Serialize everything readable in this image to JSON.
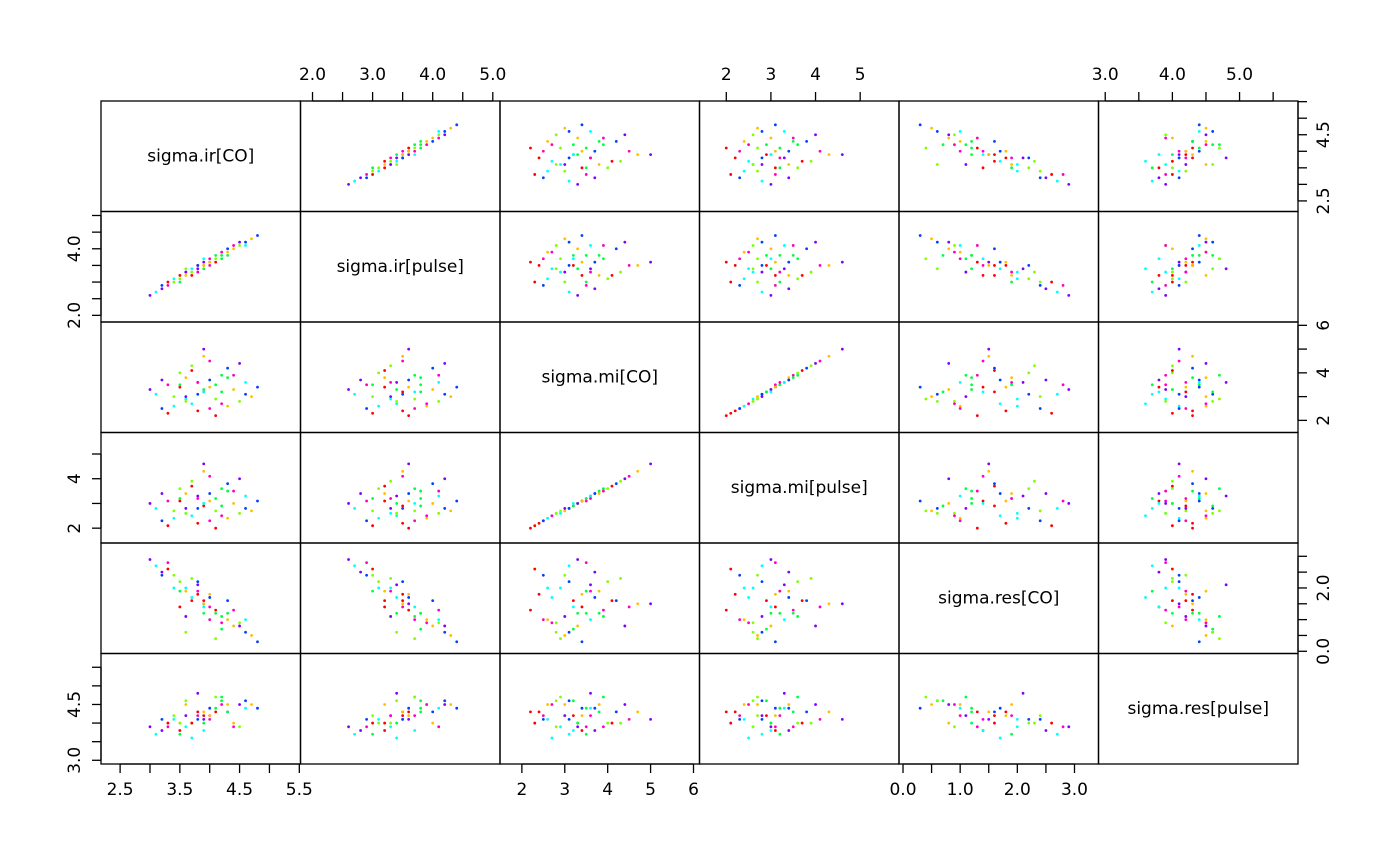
{
  "chart_data": {
    "type": "pairs",
    "variables": [
      {
        "name": "sigma.ir[CO]",
        "lim": [
          2.18,
          5.52
        ],
        "xticks": [
          2.5,
          3.5,
          4.5,
          5.5
        ],
        "xminor": [
          3,
          4,
          5
        ],
        "yticks": [
          2.5,
          4.5
        ],
        "yminor": [
          3,
          3.5,
          4,
          5,
          5.5
        ],
        "samples": [
          3.9,
          4.3,
          3.5,
          4.1,
          3.6,
          4.6,
          3.2,
          4.0,
          3.8,
          4.4,
          3.4,
          4.2,
          3.7,
          4.8,
          3.9,
          3.3,
          4.1,
          3.6,
          4.5,
          3.9,
          3.1,
          4.3,
          3.8,
          4.0,
          3.5,
          4.7,
          3.7,
          4.2,
          3.4,
          4.0,
          3.6,
          4.4,
          3.3,
          3.9,
          4.1,
          3.5,
          4.6,
          3.8,
          3.0,
          4.2,
          3.7,
          4.0,
          3.6,
          4.3,
          3.9,
          3.2,
          4.5,
          3.8
        ]
      },
      {
        "name": "sigma.ir[pulse]",
        "lim": [
          1.8,
          5.12
        ],
        "xticks": [
          {
            "value": 2,
            "label": "2.0"
          },
          {
            "value": 3,
            "label": "3.0"
          },
          {
            "value": 4,
            "label": "4.0"
          },
          {
            "value": 5,
            "label": "5.0"
          }
        ],
        "xminor": [
          2.5,
          3.5,
          4.5
        ],
        "yticks": [
          {
            "value": 2,
            "label": "2.0"
          },
          {
            "value": 4,
            "label": "4.0"
          }
        ],
        "yminor": [
          2.5,
          3,
          3.5,
          4.5,
          5
        ],
        "samples": [
          3.5,
          3.9,
          3.1,
          3.8,
          3.3,
          4.2,
          2.8,
          3.5,
          3.5,
          4.0,
          3.0,
          3.7,
          3.4,
          4.4,
          3.6,
          2.9,
          3.6,
          3.2,
          4.1,
          3.4,
          2.7,
          4.0,
          3.4,
          3.7,
          3.2,
          4.3,
          3.3,
          3.8,
          3.1,
          3.6,
          3.3,
          4.1,
          3.0,
          3.5,
          3.7,
          3.0,
          4.1,
          3.5,
          2.6,
          3.9,
          3.2,
          3.6,
          3.4,
          3.8,
          3.7,
          2.9,
          4.2,
          3.3
        ]
      },
      {
        "name": "sigma.mi[CO]",
        "lim": [
          1.49,
          6.14
        ],
        "xticks": [
          2,
          3,
          4,
          5,
          6
        ],
        "xminor": [],
        "yticks": [
          2,
          4,
          6
        ],
        "yminor": [
          3,
          5
        ],
        "samples": [
          3.2,
          2.6,
          4.0,
          3.5,
          2.9,
          3.1,
          3.7,
          4.5,
          2.4,
          3.3,
          3.0,
          3.9,
          2.7,
          3.4,
          5.0,
          3.5,
          2.2,
          3.8,
          2.8,
          3.3,
          3.1,
          4.2,
          3.6,
          2.5,
          3.4,
          3.0,
          4.3,
          3.2,
          2.6,
          3.7,
          3.0,
          3.9,
          2.3,
          4.7,
          2.9,
          3.5,
          3.6,
          3.1,
          3.3,
          2.7,
          4.1,
          3.4,
          2.8,
          3.8,
          3.2,
          2.5,
          4.4,
          3.6
        ]
      },
      {
        "name": "sigma.mi[pulse]",
        "lim": [
          1.4,
          5.87
        ],
        "xticks": [
          2,
          3,
          4,
          5
        ],
        "xminor": [],
        "yticks": [
          2,
          4
        ],
        "yminor": [
          3,
          5
        ],
        "samples": [
          2.9,
          2.4,
          3.6,
          3.2,
          2.6,
          2.8,
          3.4,
          4.1,
          2.2,
          3.0,
          2.7,
          3.6,
          2.5,
          3.1,
          4.6,
          3.1,
          2.0,
          3.4,
          2.6,
          3.0,
          2.8,
          3.8,
          3.3,
          2.3,
          3.1,
          2.7,
          3.9,
          2.9,
          2.4,
          3.4,
          2.8,
          3.5,
          2.1,
          4.3,
          2.7,
          3.2,
          3.3,
          2.8,
          3.0,
          2.5,
          3.7,
          3.1,
          2.6,
          3.5,
          3.0,
          2.3,
          4.0,
          3.2
        ]
      },
      {
        "name": "sigma.res[CO]",
        "lim": [
          -0.07,
          3.42
        ],
        "xticks": [
          {
            "value": 0,
            "label": "0.0"
          },
          {
            "value": 1,
            "label": "1.0"
          },
          {
            "value": 2,
            "label": "2.0"
          },
          {
            "value": 3,
            "label": "3.0"
          }
        ],
        "xminor": [
          0.5,
          1.5,
          2.5
        ],
        "yticks": [
          {
            "value": 0,
            "label": "0.0"
          },
          {
            "value": 2,
            "label": "2.0"
          }
        ],
        "yminor": [
          0.5,
          1,
          1.5,
          2.5,
          3
        ],
        "samples": [
          1.6,
          1.0,
          2.2,
          1.2,
          2.0,
          0.6,
          2.5,
          1.4,
          1.8,
          0.8,
          2.4,
          1.1,
          1.7,
          0.3,
          1.5,
          2.8,
          1.3,
          1.9,
          0.9,
          1.2,
          2.7,
          1.6,
          2.1,
          1.0,
          1.4,
          0.5,
          2.3,
          0.7,
          2.0,
          1.7,
          1.1,
          1.3,
          2.6,
          1.5,
          0.4,
          1.9,
          1.0,
          2.2,
          2.9,
          0.9,
          1.6,
          1.8,
          0.6,
          1.2,
          1.4,
          2.4,
          0.8,
          1.9
        ]
      },
      {
        "name": "sigma.res[pulse]",
        "lim": [
          2.9,
          5.87
        ],
        "xticks": [
          {
            "value": 3,
            "label": "3.0"
          },
          {
            "value": 4,
            "label": "4.0"
          },
          {
            "value": 5,
            "label": "5.0"
          }
        ],
        "xminor": [
          3.5,
          4.5,
          5.5
        ],
        "yticks": [
          {
            "value": 3,
            "label": "3.0"
          },
          {
            "value": 4.5,
            "label": "4.5"
          }
        ],
        "yminor": [
          3.5,
          4,
          5,
          5.5
        ],
        "samples": [
          4.2,
          4.5,
          4.0,
          4.4,
          3.9,
          4.6,
          3.8,
          4.1,
          4.3,
          4.0,
          4.2,
          4.7,
          3.6,
          4.4,
          4.1,
          3.9,
          4.3,
          4.5,
          3.9,
          4.0,
          3.7,
          4.3,
          4.8,
          4.2,
          3.8,
          4.5,
          4.0,
          4.6,
          4.1,
          4.4,
          4.2,
          3.9,
          4.0,
          4.3,
          4.7,
          3.7,
          4.4,
          4.1,
          3.9,
          4.5,
          4.0,
          4.2,
          4.6,
          4.3,
          3.8,
          4.1,
          4.5,
          4.2
        ]
      }
    ],
    "colors": [
      "#ff0000",
      "#ffbf00",
      "#80ff00",
      "#00ff40",
      "#00ffff",
      "#0040ff",
      "#8000ff",
      "#ff00bf",
      "#ff0000",
      "#ffbf00",
      "#80ff00",
      "#00ff40",
      "#00ffff",
      "#0040ff",
      "#8000ff",
      "#ff00bf",
      "#ff0000",
      "#ffbf00",
      "#80ff00",
      "#00ff40",
      "#00ffff",
      "#0040ff",
      "#8000ff",
      "#ff00bf",
      "#ff0000",
      "#ffbf00",
      "#80ff00",
      "#00ff40",
      "#00ffff",
      "#0040ff",
      "#8000ff",
      "#ff00bf",
      "#ff0000",
      "#ffbf00",
      "#80ff00",
      "#00ff40",
      "#00ffff",
      "#0040ff",
      "#8000ff",
      "#ff00bf",
      "#ff0000",
      "#ffbf00",
      "#80ff00",
      "#00ff40",
      "#00ffff",
      "#0040ff",
      "#8000ff",
      "#ff00bf"
    ]
  }
}
